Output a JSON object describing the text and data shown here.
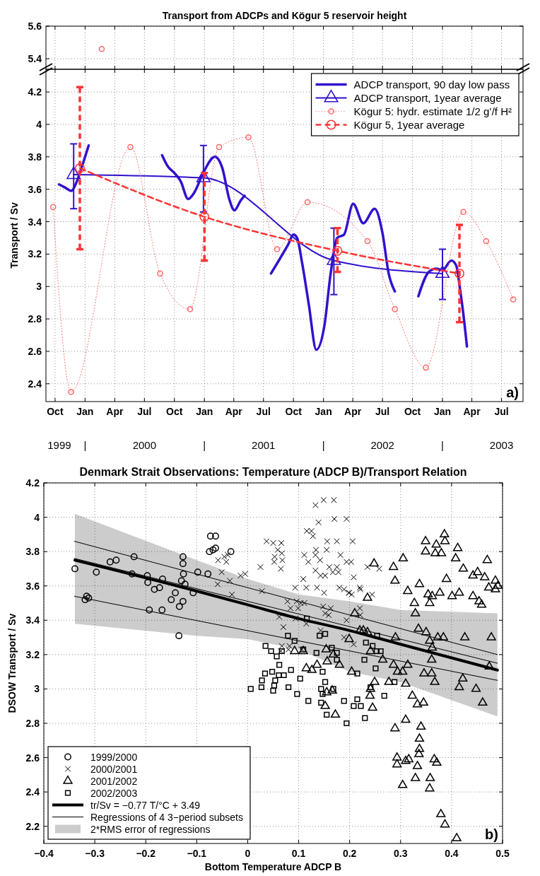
{
  "chart_data": [
    {
      "type": "line",
      "title": "Transport from ADCPs and Kögur 5 reservoir height",
      "xlim": [
        "1999-09-03",
        "2003-09-05"
      ],
      "xticks": [
        {
          "value": "1999-10-01",
          "label": null
        },
        {
          "value": "2000-01-01",
          "label": null
        },
        {
          "value": "2000-04-01",
          "label": null
        },
        {
          "value": "2000-07-01",
          "label": null
        },
        {
          "value": "2000-10-01",
          "label": null
        },
        {
          "value": "2001-01-01",
          "label": null
        },
        {
          "value": "2001-04-01",
          "label": null
        },
        {
          "value": "2001-07-01",
          "label": null
        },
        {
          "value": "2001-10-01",
          "label": null
        },
        {
          "value": "2002-01-01",
          "label": null
        },
        {
          "value": "2002-04-01",
          "label": null
        },
        {
          "value": "2002-07-01",
          "label": null
        },
        {
          "value": "2002-10-01",
          "label": null
        },
        {
          "value": "2003-01-01",
          "label": null
        },
        {
          "value": "2003-04-01",
          "label": null
        },
        {
          "value": "2003-07-01",
          "label": null
        }
      ],
      "ylim": [
        5.335,
        5.6
      ],
      "yticks": [
        5.4,
        5.6
      ],
      "grid": true,
      "tick_labels": "y",
      "series": [
        {
          "color": "#ff6666",
          "marker": "circle",
          "line_style": "dotted",
          "x": [
            "2000-02-21"
          ],
          "values": [
            5.46
          ]
        }
      ]
    },
    {
      "type": "line",
      "ylabel": "Transport / Sv",
      "xlim": [
        "1999-09-03",
        "2003-09-05"
      ],
      "xticks": [
        {
          "value": "1999-10-01",
          "label": "Oct"
        },
        {
          "value": "2000-01-01",
          "label": "Jan"
        },
        {
          "value": "2000-04-01",
          "label": "Apr"
        },
        {
          "value": "2000-07-01",
          "label": "Jul"
        },
        {
          "value": "2000-10-01",
          "label": "Oct"
        },
        {
          "value": "2001-01-01",
          "label": "Jan"
        },
        {
          "value": "2001-04-01",
          "label": "Apr"
        },
        {
          "value": "2001-07-01",
          "label": "Jul"
        },
        {
          "value": "2001-10-01",
          "label": "Oct"
        },
        {
          "value": "2002-01-01",
          "label": "Jan"
        },
        {
          "value": "2002-04-01",
          "label": "Apr"
        },
        {
          "value": "2002-07-01",
          "label": "Jul"
        },
        {
          "value": "2002-10-01",
          "label": "Oct"
        },
        {
          "value": "2003-01-01",
          "label": "Jan"
        },
        {
          "value": "2003-04-01",
          "label": "Apr"
        },
        {
          "value": "2003-07-01",
          "label": "Jul"
        }
      ],
      "ylim": [
        2.29,
        4.34
      ],
      "yticks": [
        2.4,
        2.6,
        2.8,
        3,
        3.2,
        3.4,
        3.6,
        3.8,
        4,
        4.2
      ],
      "grid": true,
      "legend": "top right",
      "annotations": [
        "a)"
      ],
      "x2lim": [
        "1999-09-03",
        "2003-09-05"
      ],
      "x2ticks": [
        {
          "value": "1999-10-14",
          "label": "1999"
        },
        {
          "value": "2000-01-01",
          "label": "|"
        },
        {
          "value": "2000-07-01",
          "label": "2000"
        },
        {
          "value": "2001-01-01",
          "label": "|"
        },
        {
          "value": "2001-07-01",
          "label": "2001"
        },
        {
          "value": "2002-01-01",
          "label": "|"
        },
        {
          "value": "2002-07-01",
          "label": "2002"
        },
        {
          "value": "2003-01-01",
          "label": "|"
        },
        {
          "value": "2003-07-01",
          "label": "2003"
        }
      ],
      "series": [
        {
          "name": "ADCP transport, 90 day low pass",
          "color": "#3311cc",
          "line_style": "solid",
          "x": [
            "1999-10-13",
            "1999-11-01",
            "1999-11-20",
            "1999-12-05",
            "1999-12-24",
            "2000-01-12",
            "2000-04-01",
            "2000-08-24",
            "2000-09-11",
            "2000-10-01",
            "2000-10-20",
            "2000-11-12",
            "2000-12-01",
            "2000-12-28",
            "2001-02-02",
            "2001-02-25",
            "2001-03-18",
            "2001-04-03",
            "2001-04-22",
            "2001-05-04",
            "2001-06-15",
            "2001-07-24",
            "2001-08-20",
            "2001-09-15",
            "2001-10-01",
            "2001-10-12",
            "2001-10-28",
            "2001-11-17",
            "2001-12-10",
            "2002-01-04",
            "2002-01-23",
            "2002-02-12",
            "2002-03-05",
            "2002-04-02",
            "2002-05-03",
            "2002-06-07",
            "2002-07-01",
            "2002-07-20",
            "2002-08-08",
            "2002-09-15",
            "2002-10-19",
            "2002-11-20",
            "2002-12-13",
            "2003-01-01",
            "2003-01-28",
            "2003-02-12",
            "2003-02-24",
            "2003-03-06",
            "2003-03-17"
          ],
          "values": [
            3.63,
            3.61,
            3.59,
            3.64,
            3.75,
            3.87,
            null,
            3.81,
            3.74,
            3.7,
            3.65,
            3.54,
            3.58,
            3.7,
            3.8,
            3.73,
            3.54,
            3.47,
            3.53,
            3.56,
            null,
            3.08,
            3.17,
            3.26,
            3.32,
            3.3,
            3.14,
            2.89,
            2.61,
            2.76,
            3.08,
            3.3,
            3.32,
            3.51,
            3.39,
            3.48,
            3.33,
            3.08,
            2.97,
            null,
            2.94,
            3.09,
            3.11,
            3.1,
            3.16,
            3.13,
            2.98,
            2.83,
            2.63
          ]
        },
        {
          "name": "ADCP transport, 1year average",
          "color": "#3311cc",
          "marker": "triangle",
          "line_style": "solid",
          "x": [
            "1999-11-27",
            "2000-12-29",
            "2002-02-02",
            "2003-01-01"
          ],
          "values": [
            3.69,
            3.67,
            3.16,
            3.08
          ],
          "errors": [
            [
              3.48,
              3.88
            ],
            [
              3.46,
              3.87
            ],
            [
              2.95,
              3.36
            ],
            [
              2.92,
              3.23
            ]
          ]
        },
        {
          "name": "Kögur 5: hydr. estimate 1/2 g’/f H²",
          "color": "#ff6666",
          "marker": "circle",
          "line_style": "dotted",
          "x": [
            "1999-09-25",
            "1999-11-19",
            "2000-05-19",
            "2000-08-18",
            "2000-11-18",
            "2001-02-15",
            "2001-05-16",
            "2001-08-12",
            "2001-11-13",
            "2002-05-16",
            "2002-08-08",
            "2002-11-11",
            "2003-03-06",
            "2003-05-15",
            "2003-08-06"
          ],
          "values": [
            3.49,
            2.35,
            3.86,
            3.08,
            2.86,
            3.86,
            3.92,
            3.23,
            3.52,
            3.28,
            2.86,
            2.5,
            3.46,
            3.28,
            2.92
          ]
        },
        {
          "name": "Kögur 5, 1year average",
          "color": "#ff3333",
          "marker": "circle",
          "line_style": "dashed",
          "x": [
            "1999-12-16",
            "2001-01-01",
            "2002-02-13",
            "2003-02-22"
          ],
          "values": [
            3.73,
            3.43,
            3.22,
            3.08
          ],
          "errors": [
            [
              3.23,
              4.23
            ],
            [
              3.16,
              3.7
            ],
            [
              3.09,
              3.36
            ],
            [
              2.78,
              3.38
            ]
          ]
        }
      ]
    },
    {
      "type": "scatter",
      "title": "Denmark Strait Observations: Temperature (ADCP B)/Transport Relation",
      "xlabel": "Bottom Temperature ADCP B",
      "ylabel": "DSOW Transport / Sv",
      "xlim": [
        -0.4,
        0.5
      ],
      "xticks": [
        {
          "value": -0.4,
          "label": "−0.4"
        },
        {
          "value": -0.3,
          "label": "−0.3"
        },
        {
          "value": -0.2,
          "label": "−0.2"
        },
        {
          "value": -0.1,
          "label": "−0.1"
        },
        0,
        0.1,
        0.2,
        0.3,
        0.4,
        0.5
      ],
      "ylim": [
        2.1,
        4.2
      ],
      "yticks": [
        2.2,
        2.4,
        2.6,
        2.8,
        3,
        3.2,
        3.4,
        3.6,
        3.8,
        4,
        4.2
      ],
      "grid": true,
      "legend": "bottom left",
      "annotations": [
        "b)",
        "2*RMS error of regressions"
      ],
      "series": [
        {
          "name": "1999/2000",
          "color": "#000000",
          "marker": "circle",
          "x": [
            -0.339,
            -0.319,
            -0.316,
            -0.312,
            -0.297,
            -0.27,
            -0.258,
            -0.223,
            -0.227,
            -0.197,
            -0.196,
            -0.183,
            -0.173,
            -0.167,
            -0.193,
            -0.168,
            -0.15,
            -0.142,
            -0.135,
            -0.134,
            -0.13,
            -0.127,
            -0.127,
            -0.126,
            -0.127,
            -0.123,
            -0.107,
            -0.098,
            -0.073,
            -0.063,
            -0.075,
            -0.068,
            -0.063,
            -0.033,
            -0.078
          ],
          "values": [
            3.7,
            3.52,
            3.54,
            3.53,
            3.68,
            3.74,
            3.75,
            3.77,
            3.67,
            3.66,
            3.62,
            3.58,
            3.59,
            3.64,
            3.46,
            3.46,
            3.52,
            3.56,
            3.31,
            3.48,
            3.63,
            3.77,
            3.73,
            3.67,
            3.51,
            3.61,
            3.56,
            3.68,
            3.89,
            3.89,
            3.8,
            3.81,
            3.82,
            3.8,
            3.67
          ]
        },
        {
          "name": "2000/2001",
          "color": "#000000",
          "marker": "cross",
          "x": [
            0.133,
            0.149,
            0.169,
            0.139,
            0.17,
            0.194,
            0.116,
            0.125,
            0.128,
            0.156,
            0.175,
            0.037,
            0.05,
            0.066,
            0.059,
            0.067,
            0.053,
            0.068,
            0.052,
            0.065,
            0.025,
            0.111,
            0.119,
            0.134,
            0.133,
            0.155,
            0.142,
            0.182,
            0.194,
            0.16,
            0.175,
            0.167,
            0.178,
            0.133,
            0.143,
            0.152,
            0.109,
            0.093,
            0.115,
            0.136,
            0.15,
            0.18,
            0.189,
            0.199,
            -0.058,
            -0.046,
            -0.039,
            -0.042,
            -0.051,
            -0.035,
            -0.059,
            -0.014,
            -0.005,
            -0.031,
            0.028,
            0.078,
            0.096,
            0.084,
            0.099,
            0.104,
            0.111,
            0.062,
            0.094,
            0.115,
            0.07,
            0.148,
            0.163,
            0.152,
            0.159,
            0.143,
            0.194,
            0.067,
            0.082,
            0.065,
            0.08,
            0.106,
            0.189,
            0.206,
            0.203,
            0.208,
            0.198,
            0.204,
            0.22,
            0.221,
            0.244,
            0.235,
            0.258,
            0.22,
            0.221,
            0.208
          ],
          "values": [
            4.07,
            4.1,
            4.1,
            3.97,
            3.99,
            3.99,
            3.92,
            3.92,
            3.89,
            3.86,
            3.86,
            3.86,
            3.85,
            3.85,
            3.81,
            3.79,
            3.77,
            3.75,
            3.74,
            3.7,
            3.71,
            3.78,
            3.74,
            3.81,
            3.78,
            3.81,
            3.75,
            3.78,
            3.74,
            3.71,
            3.71,
            3.68,
            3.68,
            3.69,
            3.66,
            3.66,
            3.64,
            3.59,
            3.59,
            3.59,
            3.56,
            3.59,
            3.58,
            3.56,
            3.75,
            3.77,
            3.78,
            3.74,
            3.68,
            3.63,
            3.61,
            3.66,
            3.67,
            3.55,
            3.57,
            3.51,
            3.51,
            3.47,
            3.47,
            3.5,
            3.5,
            3.42,
            3.41,
            3.38,
            3.36,
            3.48,
            3.47,
            3.44,
            3.43,
            3.34,
            3.4,
            3.25,
            3.25,
            3.22,
            3.23,
            3.23,
            3.3,
            3.86,
            3.74,
            3.65,
            3.56,
            3.55,
            3.59,
            3.58,
            3.55,
            3.71,
            3.7,
            3.47,
            3.43,
            3.26
          ]
        },
        {
          "name": "2001/2002",
          "color": "#000000",
          "marker": "triangle",
          "x": [
            0.248,
            0.286,
            0.289,
            0.305,
            0.314,
            0.337,
            0.327,
            0.329,
            0.349,
            0.37,
            0.386,
            0.387,
            0.349,
            0.368,
            0.38,
            0.354,
            0.362,
            0.357,
            0.377,
            0.401,
            0.415,
            0.39,
            0.412,
            0.408,
            0.423,
            0.442,
            0.451,
            0.465,
            0.47,
            0.442,
            0.454,
            0.459,
            0.473,
            0.486,
            0.486,
            0.491,
            0.235,
            0.21,
            0.22,
            0.227,
            0.235,
            0.241,
            0.265,
            0.29,
            0.335,
            0.35,
            0.357,
            0.362,
            0.373,
            0.384,
            0.426,
            0.478,
            0.361,
            0.474,
            0.286,
            0.294,
            0.304,
            0.314,
            0.346,
            0.361,
            0.422,
            0.277,
            0.31,
            0.367,
            0.415,
            0.448,
            0.461,
            0.249,
            0.241,
            0.24,
            0.245,
            0.323,
            0.333,
            0.345,
            0.31,
            0.289,
            0.34,
            0.337,
            0.337,
            0.336,
            0.293,
            0.293,
            0.31,
            0.316,
            0.333,
            0.366,
            0.371,
            0.329,
            0.358,
            0.304,
            0.357,
            0.379,
            0.387,
            0.41,
            0.092,
            0.109,
            0.136,
            0.126,
            0.156,
            0.154,
            0.168,
            0.18,
            0.115,
            0.155,
            0.152,
            0.172,
            0.166,
            0.199,
            0.204
          ],
          "values": [
            3.73,
            3.71,
            3.63,
            3.76,
            3.57,
            3.61,
            3.5,
            3.44,
            3.86,
            3.84,
            3.9,
            3.86,
            3.8,
            3.79,
            3.79,
            3.55,
            3.54,
            3.5,
            3.56,
            3.54,
            3.56,
            3.64,
            3.82,
            3.76,
            3.7,
            3.66,
            3.68,
            3.65,
            3.75,
            3.54,
            3.51,
            3.49,
            3.59,
            3.58,
            3.63,
            3.6,
            3.53,
            3.44,
            3.34,
            3.34,
            3.33,
            3.22,
            3.17,
            3.3,
            3.35,
            3.33,
            3.28,
            3.24,
            3.3,
            3.3,
            3.3,
            3.3,
            3.17,
            3.13,
            3.14,
            3.1,
            3.1,
            3.14,
            3.09,
            3.09,
            3.06,
            3.04,
            3.03,
            3.04,
            3.01,
            3,
            2.92,
            3.04,
            3,
            2.96,
            2.89,
            2.96,
            2.91,
            2.92,
            2.82,
            2.77,
            2.78,
            2.71,
            2.65,
            2.62,
            2.6,
            2.56,
            2.58,
            2.59,
            2.55,
            2.59,
            2.57,
            2.48,
            2.48,
            2.44,
            2.42,
            2.27,
            2.21,
            2.13,
            3.22,
            3.22,
            3.14,
            3.11,
            3.16,
            3.23,
            3.2,
            3.14,
            3.12,
            2.98,
            2.9,
            2.85,
            2.99,
            3.29,
            3.1
          ]
        },
        {
          "name": "2002/2003",
          "color": "#000000",
          "marker": "square",
          "x": [
            0.006,
            0.027,
            0.028,
            0.034,
            0.048,
            0.054,
            0.052,
            0.05,
            0.062,
            0.061,
            0.071,
            0.085,
            0.103,
            0.08,
            0.097,
            0.119,
            0.035,
            0.046,
            0.057,
            0.067,
            0.079,
            0.092,
            0.109,
            0.116,
            0.135,
            0.141,
            0.152,
            0.147,
            0.152,
            0.144,
            0.147,
            0.144,
            0.155,
            0.165,
            0.175,
            0.175,
            0.189,
            0.194,
            0.168,
            0.254,
            0.232,
            0.245,
            0.253,
            0.261,
            0.229,
            0.251,
            0.241,
            0.215,
            0.268,
            0.215,
            0.208,
            0.222,
            0.23,
            0.288
          ],
          "values": [
            3,
            3.01,
            3.05,
            3.09,
            3.1,
            3.05,
            3.02,
            2.99,
            3.14,
            3.08,
            3.08,
            3.11,
            3.06,
            3.01,
            2.97,
            2.93,
            3.25,
            3.22,
            3.19,
            3.22,
            3.31,
            3.28,
            3.23,
            3.41,
            3.21,
            3.31,
            3.32,
            3.1,
            3.04,
            3,
            2.97,
            2.92,
            2.85,
            3.24,
            3.21,
            3.17,
            2.93,
            2.8,
            3,
            3.31,
            3.27,
            3.25,
            3.22,
            3.22,
            3.17,
            3.12,
            3.01,
            3.09,
            2.96,
            2.94,
            2.9,
            2.9,
            2.83,
            3.04
          ]
        },
        {
          "type": "line",
          "name": "tr/Sv = −0.77 T/°C + 3.49",
          "color": "#000000",
          "x": [
            -0.339,
            -0.1,
            0,
            0.1,
            0.2,
            0.3,
            0.49
          ],
          "values": [
            3.75,
            3.57,
            3.49,
            3.41,
            3.34,
            3.26,
            3.11
          ],
          "upper": [
            4.02,
            3.75,
            3.64,
            3.55,
            3.51,
            3.46,
            3.44
          ],
          "lower": [
            3.38,
            3.31,
            3.29,
            3.23,
            3.1,
            3.04,
            2.84
          ]
        },
        {
          "type": "line",
          "name": "Regressions of 4 3−period subsets",
          "color": "#000000",
          "x": [
            -0.34,
            0.49
          ],
          "values": [
            3.86,
            3.2
          ]
        },
        {
          "type": "line",
          "color": "#000000",
          "x": [
            -0.34,
            0.49
          ],
          "values": [
            3.76,
            3.15
          ]
        },
        {
          "type": "line",
          "color": "#000000",
          "x": [
            -0.34,
            0.49
          ],
          "values": [
            3.54,
            3.05
          ]
        }
      ]
    }
  ]
}
